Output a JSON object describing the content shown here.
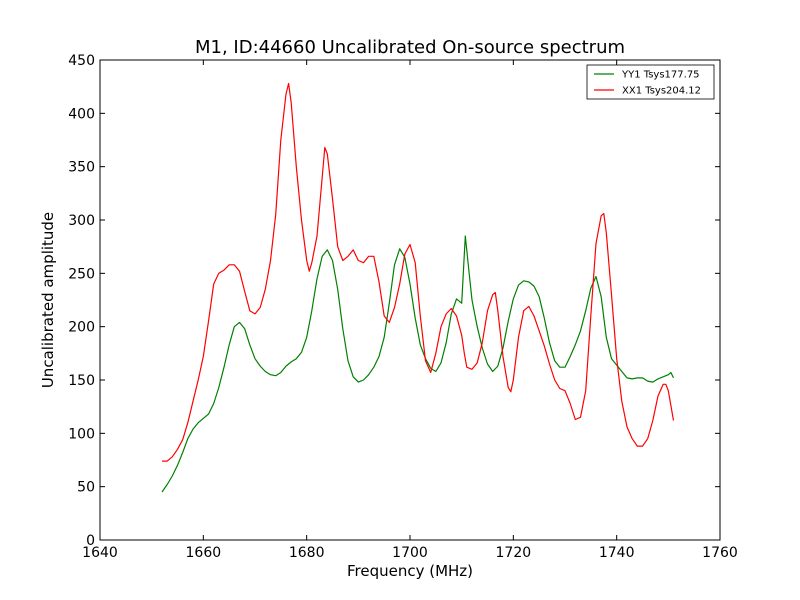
{
  "chart_data": {
    "type": "line",
    "title": "M1, ID:44660 Uncalibrated On-source spectrum",
    "xlabel": "Frequency (MHz)",
    "ylabel": "Uncalibrated amplitude",
    "xlim": [
      1640,
      1760
    ],
    "ylim": [
      0,
      450
    ],
    "xticks": [
      1640,
      1660,
      1680,
      1700,
      1720,
      1740,
      1760
    ],
    "yticks": [
      0,
      50,
      100,
      150,
      200,
      250,
      300,
      350,
      400,
      450
    ],
    "grid": false,
    "legend_position": "top-right",
    "series": [
      {
        "name": "YY1 Tsys177.75",
        "color": "#008000",
        "points": [
          [
            1652,
            45
          ],
          [
            1653,
            52
          ],
          [
            1654,
            60
          ],
          [
            1655,
            70
          ],
          [
            1656,
            82
          ],
          [
            1657,
            95
          ],
          [
            1658,
            104
          ],
          [
            1659,
            110
          ],
          [
            1660,
            114
          ],
          [
            1661,
            118
          ],
          [
            1662,
            128
          ],
          [
            1663,
            143
          ],
          [
            1664,
            162
          ],
          [
            1665,
            183
          ],
          [
            1666,
            200
          ],
          [
            1667,
            204
          ],
          [
            1668,
            198
          ],
          [
            1669,
            183
          ],
          [
            1670,
            170
          ],
          [
            1671,
            163
          ],
          [
            1672,
            158
          ],
          [
            1673,
            155
          ],
          [
            1674,
            154
          ],
          [
            1675,
            157
          ],
          [
            1676,
            163
          ],
          [
            1677,
            167
          ],
          [
            1678,
            170
          ],
          [
            1679,
            176
          ],
          [
            1680,
            190
          ],
          [
            1681,
            215
          ],
          [
            1682,
            245
          ],
          [
            1683,
            266
          ],
          [
            1684,
            272
          ],
          [
            1685,
            262
          ],
          [
            1686,
            235
          ],
          [
            1687,
            198
          ],
          [
            1688,
            168
          ],
          [
            1689,
            153
          ],
          [
            1690,
            148
          ],
          [
            1691,
            150
          ],
          [
            1692,
            155
          ],
          [
            1693,
            162
          ],
          [
            1694,
            172
          ],
          [
            1695,
            190
          ],
          [
            1696,
            222
          ],
          [
            1697,
            258
          ],
          [
            1698,
            273
          ],
          [
            1699,
            265
          ],
          [
            1700,
            240
          ],
          [
            1701,
            208
          ],
          [
            1702,
            183
          ],
          [
            1703,
            170
          ],
          [
            1704,
            161
          ],
          [
            1705,
            158
          ],
          [
            1706,
            166
          ],
          [
            1707,
            185
          ],
          [
            1708,
            212
          ],
          [
            1709,
            226
          ],
          [
            1710,
            222
          ],
          [
            1710.7,
            285
          ],
          [
            1711.5,
            248
          ],
          [
            1712,
            225
          ],
          [
            1713,
            200
          ],
          [
            1714,
            180
          ],
          [
            1715,
            165
          ],
          [
            1716,
            158
          ],
          [
            1717,
            163
          ],
          [
            1718,
            180
          ],
          [
            1719,
            205
          ],
          [
            1720,
            226
          ],
          [
            1721,
            239
          ],
          [
            1722,
            243
          ],
          [
            1723,
            242
          ],
          [
            1724,
            238
          ],
          [
            1725,
            228
          ],
          [
            1726,
            208
          ],
          [
            1727,
            185
          ],
          [
            1728,
            168
          ],
          [
            1729,
            162
          ],
          [
            1730,
            162
          ],
          [
            1731,
            172
          ],
          [
            1732,
            183
          ],
          [
            1733,
            196
          ],
          [
            1734,
            215
          ],
          [
            1735,
            236
          ],
          [
            1736,
            247
          ],
          [
            1737,
            228
          ],
          [
            1738,
            190
          ],
          [
            1739,
            170
          ],
          [
            1740,
            164
          ],
          [
            1741,
            158
          ],
          [
            1742,
            152
          ],
          [
            1743,
            151
          ],
          [
            1744,
            152
          ],
          [
            1745,
            152
          ],
          [
            1746,
            149
          ],
          [
            1747,
            148
          ],
          [
            1748,
            151
          ],
          [
            1749,
            153
          ],
          [
            1750,
            155
          ],
          [
            1750.5,
            157
          ],
          [
            1751,
            152
          ]
        ]
      },
      {
        "name": "XX1 Tsys204.12",
        "color": "#ff0000",
        "points": [
          [
            1652,
            74
          ],
          [
            1653,
            74
          ],
          [
            1654,
            78
          ],
          [
            1655,
            85
          ],
          [
            1656,
            94
          ],
          [
            1657,
            110
          ],
          [
            1658,
            130
          ],
          [
            1659,
            150
          ],
          [
            1660,
            172
          ],
          [
            1661,
            205
          ],
          [
            1662,
            240
          ],
          [
            1663,
            250
          ],
          [
            1664,
            253
          ],
          [
            1665,
            258
          ],
          [
            1666,
            258
          ],
          [
            1667,
            252
          ],
          [
            1668,
            233
          ],
          [
            1669,
            215
          ],
          [
            1670,
            212
          ],
          [
            1671,
            218
          ],
          [
            1672,
            235
          ],
          [
            1673,
            262
          ],
          [
            1674,
            305
          ],
          [
            1675,
            375
          ],
          [
            1676,
            418
          ],
          [
            1676.5,
            428
          ],
          [
            1677,
            410
          ],
          [
            1678,
            350
          ],
          [
            1679,
            300
          ],
          [
            1680,
            262
          ],
          [
            1680.5,
            252
          ],
          [
            1681,
            260
          ],
          [
            1682,
            285
          ],
          [
            1683,
            340
          ],
          [
            1683.5,
            368
          ],
          [
            1684,
            362
          ],
          [
            1685,
            320
          ],
          [
            1686,
            275
          ],
          [
            1687,
            262
          ],
          [
            1688,
            266
          ],
          [
            1689,
            272
          ],
          [
            1690,
            262
          ],
          [
            1691,
            260
          ],
          [
            1692,
            266
          ],
          [
            1693,
            266
          ],
          [
            1694,
            242
          ],
          [
            1695,
            210
          ],
          [
            1696,
            204
          ],
          [
            1697,
            218
          ],
          [
            1698,
            240
          ],
          [
            1699,
            268
          ],
          [
            1700,
            277
          ],
          [
            1701,
            260
          ],
          [
            1702,
            210
          ],
          [
            1703,
            168
          ],
          [
            1704,
            157
          ],
          [
            1705,
            175
          ],
          [
            1706,
            200
          ],
          [
            1707,
            212
          ],
          [
            1708,
            217
          ],
          [
            1709,
            210
          ],
          [
            1710,
            192
          ],
          [
            1710.5,
            175
          ],
          [
            1711,
            162
          ],
          [
            1712,
            160
          ],
          [
            1713,
            166
          ],
          [
            1714,
            185
          ],
          [
            1715,
            215
          ],
          [
            1716,
            230
          ],
          [
            1716.5,
            232
          ],
          [
            1717,
            215
          ],
          [
            1718,
            172
          ],
          [
            1719,
            143
          ],
          [
            1719.5,
            139
          ],
          [
            1720,
            150
          ],
          [
            1721,
            190
          ],
          [
            1722,
            215
          ],
          [
            1723,
            219
          ],
          [
            1724,
            210
          ],
          [
            1725,
            196
          ],
          [
            1726,
            182
          ],
          [
            1727,
            165
          ],
          [
            1728,
            150
          ],
          [
            1729,
            142
          ],
          [
            1730,
            140
          ],
          [
            1731,
            128
          ],
          [
            1732,
            113
          ],
          [
            1733,
            115
          ],
          [
            1734,
            140
          ],
          [
            1735,
            210
          ],
          [
            1736,
            278
          ],
          [
            1737,
            304
          ],
          [
            1737.5,
            306
          ],
          [
            1738,
            288
          ],
          [
            1739,
            230
          ],
          [
            1740,
            170
          ],
          [
            1741,
            130
          ],
          [
            1742,
            106
          ],
          [
            1743,
            95
          ],
          [
            1744,
            88
          ],
          [
            1745,
            88
          ],
          [
            1746,
            95
          ],
          [
            1747,
            112
          ],
          [
            1748,
            135
          ],
          [
            1749,
            146
          ],
          [
            1749.5,
            146
          ],
          [
            1750,
            140
          ],
          [
            1751,
            112
          ]
        ]
      }
    ]
  }
}
